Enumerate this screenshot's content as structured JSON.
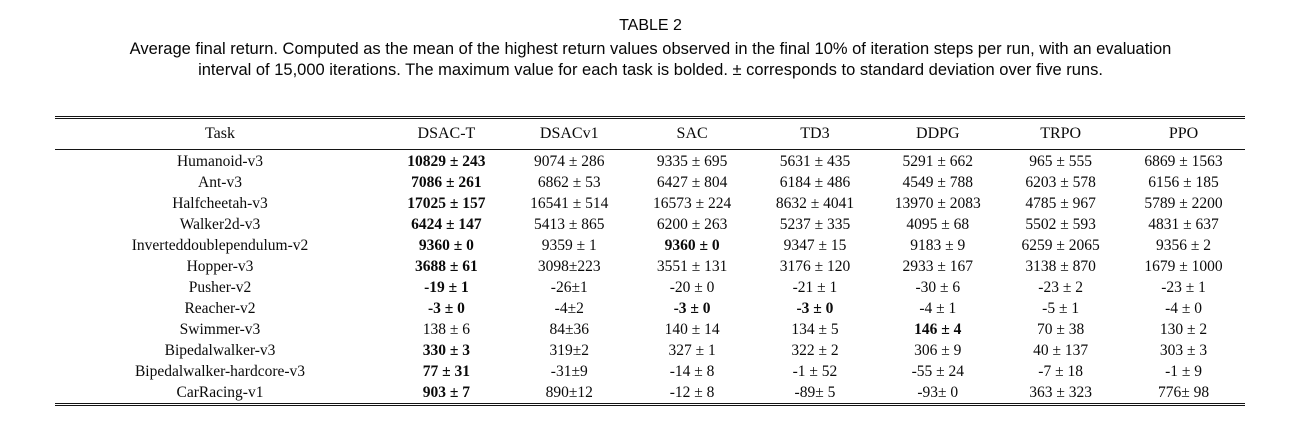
{
  "colors": {
    "background": "#ffffff",
    "text": "#000000"
  },
  "caption": {
    "label": "TABLE 2",
    "lines": [
      "Average final return. Computed as the mean of the highest return values observed in the final 10% of iteration steps per run, with an evaluation",
      "interval of 15,000 iterations. The maximum value for each task is bolded. ± corresponds to standard deviation over five runs."
    ]
  },
  "table": {
    "columns": [
      "Task",
      "DSAC-T",
      "DSACv1",
      "SAC",
      "TD3",
      "DDPG",
      "TRPO",
      "PPO"
    ],
    "rows": [
      {
        "task": "Humanoid-v3",
        "cells": [
          {
            "text": "10829 ± 243",
            "bold": true
          },
          {
            "text": "9074 ± 286",
            "bold": false
          },
          {
            "text": "9335 ± 695",
            "bold": false
          },
          {
            "text": "5631 ± 435",
            "bold": false
          },
          {
            "text": "5291 ± 662",
            "bold": false
          },
          {
            "text": "965 ± 555",
            "bold": false
          },
          {
            "text": "6869 ± 1563",
            "bold": false
          }
        ]
      },
      {
        "task": "Ant-v3",
        "cells": [
          {
            "text": "7086 ± 261",
            "bold": true
          },
          {
            "text": "6862 ± 53",
            "bold": false
          },
          {
            "text": "6427 ± 804",
            "bold": false
          },
          {
            "text": "6184 ± 486",
            "bold": false
          },
          {
            "text": "4549 ± 788",
            "bold": false
          },
          {
            "text": "6203 ± 578",
            "bold": false
          },
          {
            "text": "6156 ± 185",
            "bold": false
          }
        ]
      },
      {
        "task": "Halfcheetah-v3",
        "cells": [
          {
            "text": "17025 ± 157",
            "bold": true
          },
          {
            "text": "16541 ± 514",
            "bold": false
          },
          {
            "text": "16573 ± 224",
            "bold": false
          },
          {
            "text": "8632 ± 4041",
            "bold": false
          },
          {
            "text": "13970 ± 2083",
            "bold": false
          },
          {
            "text": "4785 ± 967",
            "bold": false
          },
          {
            "text": "5789 ± 2200",
            "bold": false
          }
        ]
      },
      {
        "task": "Walker2d-v3",
        "cells": [
          {
            "text": "6424 ± 147",
            "bold": true
          },
          {
            "text": "5413 ± 865",
            "bold": false
          },
          {
            "text": "6200 ± 263",
            "bold": false
          },
          {
            "text": "5237 ± 335",
            "bold": false
          },
          {
            "text": "4095 ± 68",
            "bold": false
          },
          {
            "text": "5502 ± 593",
            "bold": false
          },
          {
            "text": "4831 ± 637",
            "bold": false
          }
        ]
      },
      {
        "task": "Inverteddoublependulum-v2",
        "cells": [
          {
            "text": "9360 ± 0",
            "bold": true
          },
          {
            "text": "9359 ± 1",
            "bold": false
          },
          {
            "text": "9360 ± 0",
            "bold": true
          },
          {
            "text": "9347 ± 15",
            "bold": false
          },
          {
            "text": "9183 ± 9",
            "bold": false
          },
          {
            "text": "6259 ± 2065",
            "bold": false
          },
          {
            "text": "9356 ± 2",
            "bold": false
          }
        ]
      },
      {
        "task": "Hopper-v3",
        "cells": [
          {
            "text": "3688 ± 61",
            "bold": true
          },
          {
            "text": "3098±223",
            "bold": false
          },
          {
            "text": "3551 ± 131",
            "bold": false
          },
          {
            "text": "3176 ± 120",
            "bold": false
          },
          {
            "text": "2933 ± 167",
            "bold": false
          },
          {
            "text": "3138 ± 870",
            "bold": false
          },
          {
            "text": "1679 ± 1000",
            "bold": false
          }
        ]
      },
      {
        "task": "Pusher-v2",
        "cells": [
          {
            "text": "-19 ± 1",
            "bold": true
          },
          {
            "text": "-26±1",
            "bold": false
          },
          {
            "text": "-20 ± 0",
            "bold": false
          },
          {
            "text": "-21 ± 1",
            "bold": false
          },
          {
            "text": "-30 ± 6",
            "bold": false
          },
          {
            "text": "-23 ± 2",
            "bold": false
          },
          {
            "text": "-23 ± 1",
            "bold": false
          }
        ]
      },
      {
        "task": "Reacher-v2",
        "cells": [
          {
            "text": "-3 ± 0",
            "bold": true
          },
          {
            "text": "-4±2",
            "bold": false
          },
          {
            "text": "-3 ± 0",
            "bold": true
          },
          {
            "text": "-3 ± 0",
            "bold": true
          },
          {
            "text": "-4 ± 1",
            "bold": false
          },
          {
            "text": "-5 ± 1",
            "bold": false
          },
          {
            "text": "-4 ± 0",
            "bold": false
          }
        ]
      },
      {
        "task": "Swimmer-v3",
        "cells": [
          {
            "text": "138 ± 6",
            "bold": false
          },
          {
            "text": "84±36",
            "bold": false
          },
          {
            "text": "140 ± 14",
            "bold": false
          },
          {
            "text": "134 ± 5",
            "bold": false
          },
          {
            "text": "146 ± 4",
            "bold": true
          },
          {
            "text": "70 ± 38",
            "bold": false
          },
          {
            "text": "130 ± 2",
            "bold": false
          }
        ]
      },
      {
        "task": "Bipedalwalker-v3",
        "cells": [
          {
            "text": "330 ± 3",
            "bold": true
          },
          {
            "text": "319±2",
            "bold": false
          },
          {
            "text": "327 ± 1",
            "bold": false
          },
          {
            "text": "322 ± 2",
            "bold": false
          },
          {
            "text": "306 ± 9",
            "bold": false
          },
          {
            "text": "40 ± 137",
            "bold": false
          },
          {
            "text": "303 ± 3",
            "bold": false
          }
        ]
      },
      {
        "task": "Bipedalwalker-hardcore-v3",
        "cells": [
          {
            "text": "77 ± 31",
            "bold": true
          },
          {
            "text": "-31±9",
            "bold": false
          },
          {
            "text": "-14 ± 8",
            "bold": false
          },
          {
            "text": "-1 ± 52",
            "bold": false
          },
          {
            "text": "-55 ± 24",
            "bold": false
          },
          {
            "text": "-7 ± 18",
            "bold": false
          },
          {
            "text": "-1 ± 9",
            "bold": false
          }
        ]
      },
      {
        "task": "CarRacing-v1",
        "cells": [
          {
            "text": "903 ± 7",
            "bold": true
          },
          {
            "text": "890±12",
            "bold": false
          },
          {
            "text": "-12 ± 8",
            "bold": false
          },
          {
            "text": "-89± 5",
            "bold": false
          },
          {
            "text": "-93± 0",
            "bold": false
          },
          {
            "text": "363 ± 323",
            "bold": false
          },
          {
            "text": "776± 98",
            "bold": false
          }
        ]
      }
    ]
  }
}
